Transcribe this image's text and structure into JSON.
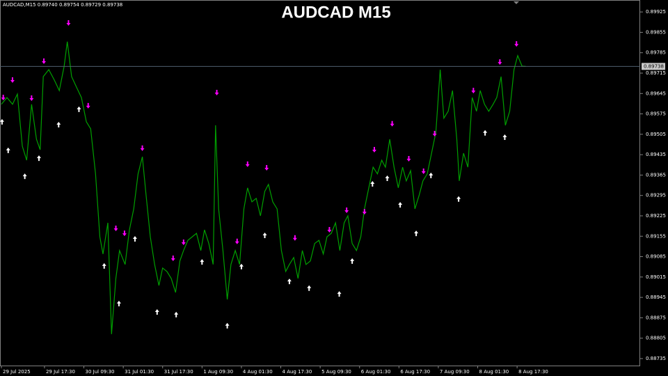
{
  "chart_data": {
    "type": "line",
    "title": "AUDCAD M15",
    "info": "AUDCAD,M15  0.89740 0.89754 0.89729 0.89738",
    "last_price": 0.89738,
    "xlim": [
      -2.3,
      1038
    ],
    "ylim": [
      0.88711,
      0.89966
    ],
    "xticks": [
      {
        "value": 0,
        "label": "29 Jul 2025"
      },
      {
        "value": 70,
        "label": "29 Jul 17:30"
      },
      {
        "value": 134,
        "label": "30 Jul 09:30"
      },
      {
        "value": 198,
        "label": "31 Jul 01:30"
      },
      {
        "value": 262,
        "label": "31 Jul 17:30"
      },
      {
        "value": 326,
        "label": "1 Aug 09:30"
      },
      {
        "value": 390,
        "label": "4 Aug 01:30"
      },
      {
        "value": 454,
        "label": "4 Aug 17:30"
      },
      {
        "value": 518,
        "label": "5 Aug 09:30"
      },
      {
        "value": 582,
        "label": "6 Aug 01:30"
      },
      {
        "value": 646,
        "label": "6 Aug 17:30"
      },
      {
        "value": 710,
        "label": "7 Aug 09:30"
      },
      {
        "value": 774,
        "label": "8 Aug 01:30"
      },
      {
        "value": 838,
        "label": "8 Aug 17:30"
      }
    ],
    "yticks": [
      0.89925,
      0.89855,
      0.89785,
      0.89715,
      0.89645,
      0.89575,
      0.89505,
      0.89435,
      0.89365,
      0.89295,
      0.89225,
      0.89155,
      0.89085,
      0.89015,
      0.88945,
      0.88875,
      0.88805,
      0.88735
    ],
    "x": [
      0,
      9,
      18,
      26,
      34,
      41,
      49,
      57,
      63,
      68,
      77,
      86,
      94,
      102,
      107,
      114,
      122,
      130,
      138,
      145,
      153,
      160,
      165,
      173,
      179,
      186,
      192,
      201,
      208,
      215,
      222,
      229,
      235,
      242,
      249,
      256,
      262,
      269,
      276,
      283,
      290,
      296,
      303,
      310,
      317,
      324,
      330,
      337,
      344,
      348,
      353,
      360,
      367,
      373,
      380,
      387,
      394,
      400,
      407,
      414,
      421,
      428,
      434,
      441,
      448,
      455,
      462,
      468,
      475,
      482,
      489,
      495,
      502,
      509,
      516,
      523,
      529,
      536,
      543,
      550,
      557,
      563,
      570,
      577,
      584,
      590,
      597,
      604,
      611,
      618,
      624,
      631,
      638,
      645,
      652,
      658,
      665,
      672,
      679,
      685,
      692,
      699,
      706,
      713,
      719,
      726,
      733,
      740,
      744,
      751,
      758,
      765,
      772,
      778,
      785,
      792,
      799,
      805,
      812,
      819,
      826,
      833,
      839,
      846,
      852
    ],
    "series": [
      {
        "color": "#00a000",
        "values": [
          0.89608,
          0.89631,
          0.89608,
          0.89643,
          0.89464,
          0.89416,
          0.89608,
          0.89488,
          0.89452,
          0.89703,
          0.89727,
          0.89691,
          0.89655,
          0.89739,
          0.89823,
          0.89703,
          0.89667,
          0.89631,
          0.89548,
          0.89524,
          0.89369,
          0.89153,
          0.89094,
          0.89201,
          0.88819,
          0.8901,
          0.89106,
          0.89058,
          0.89177,
          0.89249,
          0.89369,
          0.89428,
          0.89297,
          0.89153,
          0.89058,
          0.88986,
          0.89046,
          0.89034,
          0.8901,
          0.88962,
          0.8907,
          0.89106,
          0.89141,
          0.89153,
          0.89165,
          0.89106,
          0.89177,
          0.8913,
          0.89058,
          0.89536,
          0.89249,
          0.89106,
          0.88938,
          0.89058,
          0.89106,
          0.89058,
          0.89249,
          0.89321,
          0.89273,
          0.89285,
          0.89225,
          0.89309,
          0.89333,
          0.89273,
          0.89249,
          0.89106,
          0.89034,
          0.89058,
          0.89082,
          0.8901,
          0.89106,
          0.89058,
          0.8907,
          0.8913,
          0.89141,
          0.89094,
          0.89153,
          0.89165,
          0.89201,
          0.89106,
          0.89201,
          0.89225,
          0.8913,
          0.89106,
          0.89153,
          0.89249,
          0.89321,
          0.89392,
          0.89369,
          0.89416,
          0.89392,
          0.89488,
          0.89392,
          0.89321,
          0.89392,
          0.89345,
          0.8938,
          0.89249,
          0.89297,
          0.89345,
          0.89369,
          0.8944,
          0.89512,
          0.89727,
          0.8956,
          0.89584,
          0.89655,
          0.89488,
          0.89345,
          0.8944,
          0.89392,
          0.89631,
          0.89584,
          0.89655,
          0.89608,
          0.89584,
          0.89608,
          0.89631,
          0.89703,
          0.89536,
          0.89584,
          0.89727,
          0.89775,
          0.89739,
          0.89738
        ]
      },
      {
        "marker": "arrow-down",
        "color": "#ff00ff",
        "x": [
          3,
          18,
          49,
          69,
          109,
          141,
          186,
          200,
          229,
          279,
          296,
          350,
          383,
          400,
          431,
          477,
          533,
          561,
          590,
          606,
          635,
          662,
          686,
          704,
          767,
          810,
          837
        ],
        "values": [
          0.89631,
          0.89691,
          0.89629,
          0.89756,
          0.89887,
          0.89603,
          0.89182,
          0.89165,
          0.89457,
          0.89079,
          0.89134,
          0.89648,
          0.89137,
          0.89402,
          0.8939,
          0.89149,
          0.89177,
          0.89244,
          0.89239,
          0.89452,
          0.89541,
          0.89421,
          0.89378,
          0.89507,
          0.89655,
          0.89753,
          0.89815
        ]
      },
      {
        "marker": "arrow-up",
        "color": "#ffffff",
        "x": [
          1,
          11,
          38,
          61,
          93,
          126,
          167,
          191,
          217,
          253,
          284,
          326,
          367,
          390,
          428,
          468,
          500,
          549,
          570,
          603,
          627,
          648,
          674,
          698,
          743,
          786,
          818
        ],
        "values": [
          0.89548,
          0.8945,
          0.89361,
          0.89423,
          0.89538,
          0.89591,
          0.89053,
          0.88924,
          0.89146,
          0.88895,
          0.88886,
          0.89067,
          0.88848,
          0.89051,
          0.89158,
          0.89,
          0.88977,
          0.88957,
          0.8907,
          0.89335,
          0.89354,
          0.89263,
          0.89165,
          0.89364,
          0.89283,
          0.8951,
          0.89495
        ]
      }
    ]
  }
}
